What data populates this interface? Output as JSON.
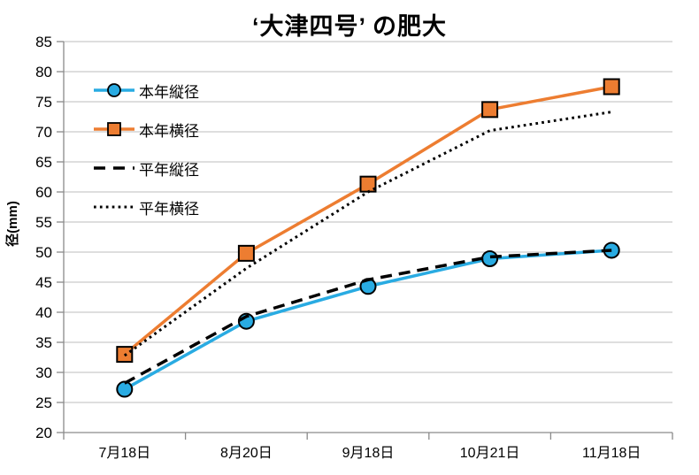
{
  "chart_data": {
    "type": "line",
    "title": "‘大津四号’ の肥大",
    "ylabel": "径(mm)",
    "xlabel": "",
    "categories": [
      "7月18日",
      "8月20日",
      "9月18日",
      "10月21日",
      "11月18日"
    ],
    "ylim": [
      20,
      85
    ],
    "y_step": 5,
    "grid": true,
    "legend_position": "inside-top-left",
    "colors": {
      "gridline": "#BDBDBD",
      "axis": "#8A8A8A",
      "text": "#000000"
    },
    "series": [
      {
        "name": "本年縦径",
        "color": "#29ABE2",
        "marker": "circle",
        "line": "solid",
        "values": [
          27.2,
          38.5,
          44.3,
          48.9,
          50.3
        ]
      },
      {
        "name": "本年横径",
        "color": "#ED7D31",
        "marker": "square",
        "line": "solid",
        "values": [
          33.0,
          49.8,
          61.3,
          73.7,
          77.5
        ]
      },
      {
        "name": "平年縦径",
        "color": "#000000",
        "marker": "none",
        "line": "dashed",
        "values": [
          28.2,
          39.3,
          45.4,
          49.2,
          50.3
        ]
      },
      {
        "name": "平年横径",
        "color": "#000000",
        "marker": "none",
        "line": "dotted",
        "values": [
          32.8,
          47.3,
          60.0,
          70.2,
          73.3
        ]
      }
    ]
  }
}
